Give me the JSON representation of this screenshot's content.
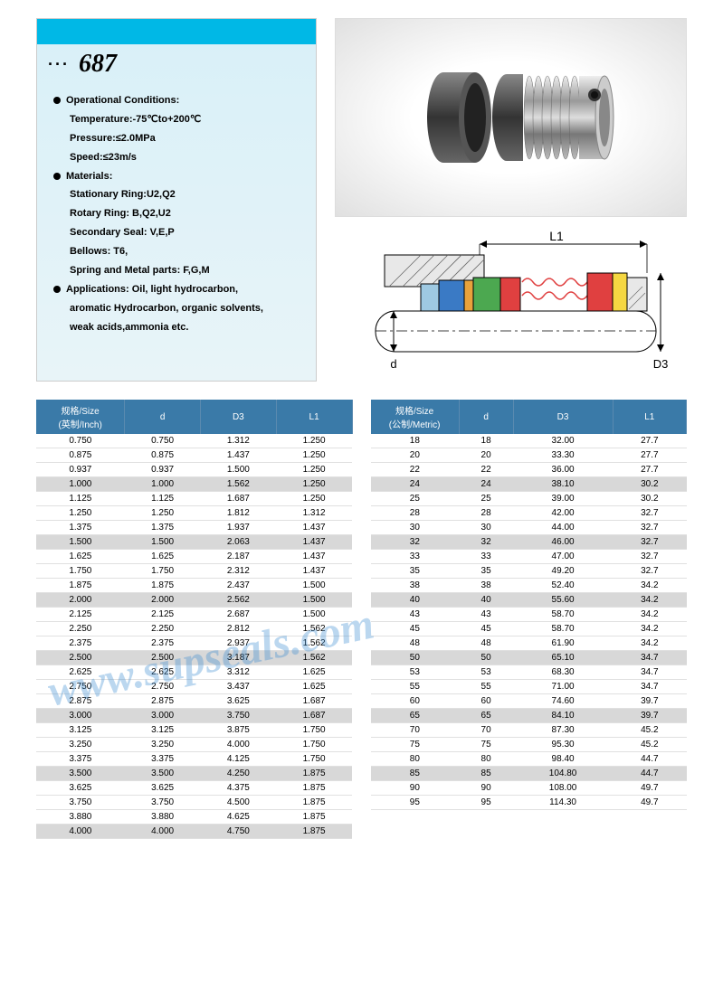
{
  "model": {
    "prefix": "···",
    "number": "687"
  },
  "specs": {
    "s1_title": "Operational Conditions:",
    "s1_l1": "Temperature:-75℃to+200℃",
    "s1_l2": "Pressure:≤2.0MPa",
    "s1_l3": "Speed:≤23m/s",
    "s2_title": "Materials:",
    "s2_l1": "Stationary Ring:U2,Q2",
    "s2_l2": "Rotary Ring: B,Q2,U2",
    "s2_l3": "Secondary Seal: V,E,P",
    "s2_l4": "Bellows: T6,",
    "s2_l5": "Spring and Metal parts: F,G,M",
    "s3_title": "Applications: Oil, light hydrocarbon,",
    "s3_l1": "aromatic Hydrocarbon, organic solvents,",
    "s3_l2": "weak acids,ammonia etc."
  },
  "diagram": {
    "L1": "L1",
    "d": "d",
    "D3": "D3"
  },
  "table_inch": {
    "header_size_line1": "规格/Size",
    "header_size_line2": "(英制/Inch)",
    "h_d": "d",
    "h_D3": "D3",
    "h_L1": "L1",
    "rows": [
      [
        "0.750",
        "0.750",
        "1.312",
        "1.250"
      ],
      [
        "0.875",
        "0.875",
        "1.437",
        "1.250"
      ],
      [
        "0.937",
        "0.937",
        "1.500",
        "1.250"
      ],
      [
        "1.000",
        "1.000",
        "1.562",
        "1.250"
      ],
      [
        "1.125",
        "1.125",
        "1.687",
        "1.250"
      ],
      [
        "1.250",
        "1.250",
        "1.812",
        "1.312"
      ],
      [
        "1.375",
        "1.375",
        "1.937",
        "1.437"
      ],
      [
        "1.500",
        "1.500",
        "2.063",
        "1.437"
      ],
      [
        "1.625",
        "1.625",
        "2.187",
        "1.437"
      ],
      [
        "1.750",
        "1.750",
        "2.312",
        "1.437"
      ],
      [
        "1.875",
        "1.875",
        "2.437",
        "1.500"
      ],
      [
        "2.000",
        "2.000",
        "2.562",
        "1.500"
      ],
      [
        "2.125",
        "2.125",
        "2.687",
        "1.500"
      ],
      [
        "2.250",
        "2.250",
        "2.812",
        "1.562"
      ],
      [
        "2.375",
        "2.375",
        "2.937",
        "1.562"
      ],
      [
        "2.500",
        "2.500",
        "3.187",
        "1.562"
      ],
      [
        "2.625",
        "2.625",
        "3.312",
        "1.625"
      ],
      [
        "2.750",
        "2.750",
        "3.437",
        "1.625"
      ],
      [
        "2.875",
        "2.875",
        "3.625",
        "1.687"
      ],
      [
        "3.000",
        "3.000",
        "3.750",
        "1.687"
      ],
      [
        "3.125",
        "3.125",
        "3.875",
        "1.750"
      ],
      [
        "3.250",
        "3.250",
        "4.000",
        "1.750"
      ],
      [
        "3.375",
        "3.375",
        "4.125",
        "1.750"
      ],
      [
        "3.500",
        "3.500",
        "4.250",
        "1.875"
      ],
      [
        "3.625",
        "3.625",
        "4.375",
        "1.875"
      ],
      [
        "3.750",
        "3.750",
        "4.500",
        "1.875"
      ],
      [
        "3.880",
        "3.880",
        "4.625",
        "1.875"
      ],
      [
        "4.000",
        "4.000",
        "4.750",
        "1.875"
      ]
    ],
    "alt_rows": [
      3,
      7,
      11,
      15,
      19,
      23,
      27
    ],
    "colors": {
      "header_bg": "#3a7aa8",
      "header_fg": "#ffffff",
      "alt_bg": "#d8d8d8"
    }
  },
  "table_metric": {
    "header_size_line1": "规格/Size",
    "header_size_line2": "(公制/Metric)",
    "h_d": "d",
    "h_D3": "D3",
    "h_L1": "L1",
    "rows": [
      [
        "18",
        "18",
        "32.00",
        "27.7"
      ],
      [
        "20",
        "20",
        "33.30",
        "27.7"
      ],
      [
        "22",
        "22",
        "36.00",
        "27.7"
      ],
      [
        "24",
        "24",
        "38.10",
        "30.2"
      ],
      [
        "25",
        "25",
        "39.00",
        "30.2"
      ],
      [
        "28",
        "28",
        "42.00",
        "32.7"
      ],
      [
        "30",
        "30",
        "44.00",
        "32.7"
      ],
      [
        "32",
        "32",
        "46.00",
        "32.7"
      ],
      [
        "33",
        "33",
        "47.00",
        "32.7"
      ],
      [
        "35",
        "35",
        "49.20",
        "32.7"
      ],
      [
        "38",
        "38",
        "52.40",
        "34.2"
      ],
      [
        "40",
        "40",
        "55.60",
        "34.2"
      ],
      [
        "43",
        "43",
        "58.70",
        "34.2"
      ],
      [
        "45",
        "45",
        "58.70",
        "34.2"
      ],
      [
        "48",
        "48",
        "61.90",
        "34.2"
      ],
      [
        "50",
        "50",
        "65.10",
        "34.7"
      ],
      [
        "53",
        "53",
        "68.30",
        "34.7"
      ],
      [
        "55",
        "55",
        "71.00",
        "34.7"
      ],
      [
        "60",
        "60",
        "74.60",
        "39.7"
      ],
      [
        "65",
        "65",
        "84.10",
        "39.7"
      ],
      [
        "70",
        "70",
        "87.30",
        "45.2"
      ],
      [
        "75",
        "75",
        "95.30",
        "45.2"
      ],
      [
        "80",
        "80",
        "98.40",
        "44.7"
      ],
      [
        "85",
        "85",
        "104.80",
        "44.7"
      ],
      [
        "90",
        "90",
        "108.00",
        "49.7"
      ],
      [
        "95",
        "95",
        "114.30",
        "49.7"
      ]
    ],
    "alt_rows": [
      3,
      7,
      11,
      15,
      19,
      23
    ],
    "colors": {
      "header_bg": "#3a7aa8",
      "header_fg": "#ffffff",
      "alt_bg": "#d8d8d8"
    }
  },
  "watermark": "www.supseals.com",
  "colors": {
    "cyan_header": "#00b8e6",
    "card_bg_top": "#d8f0f8",
    "card_bg_bottom": "#e8f4f8"
  },
  "diagram_colors": {
    "green": "#4ca850",
    "red": "#e04040",
    "yellow": "#f5d742",
    "blue": "#3a7ac5",
    "ltblue": "#9ec9e2",
    "orange": "#e8a23c",
    "gray": "#888",
    "hatch": "#666"
  }
}
